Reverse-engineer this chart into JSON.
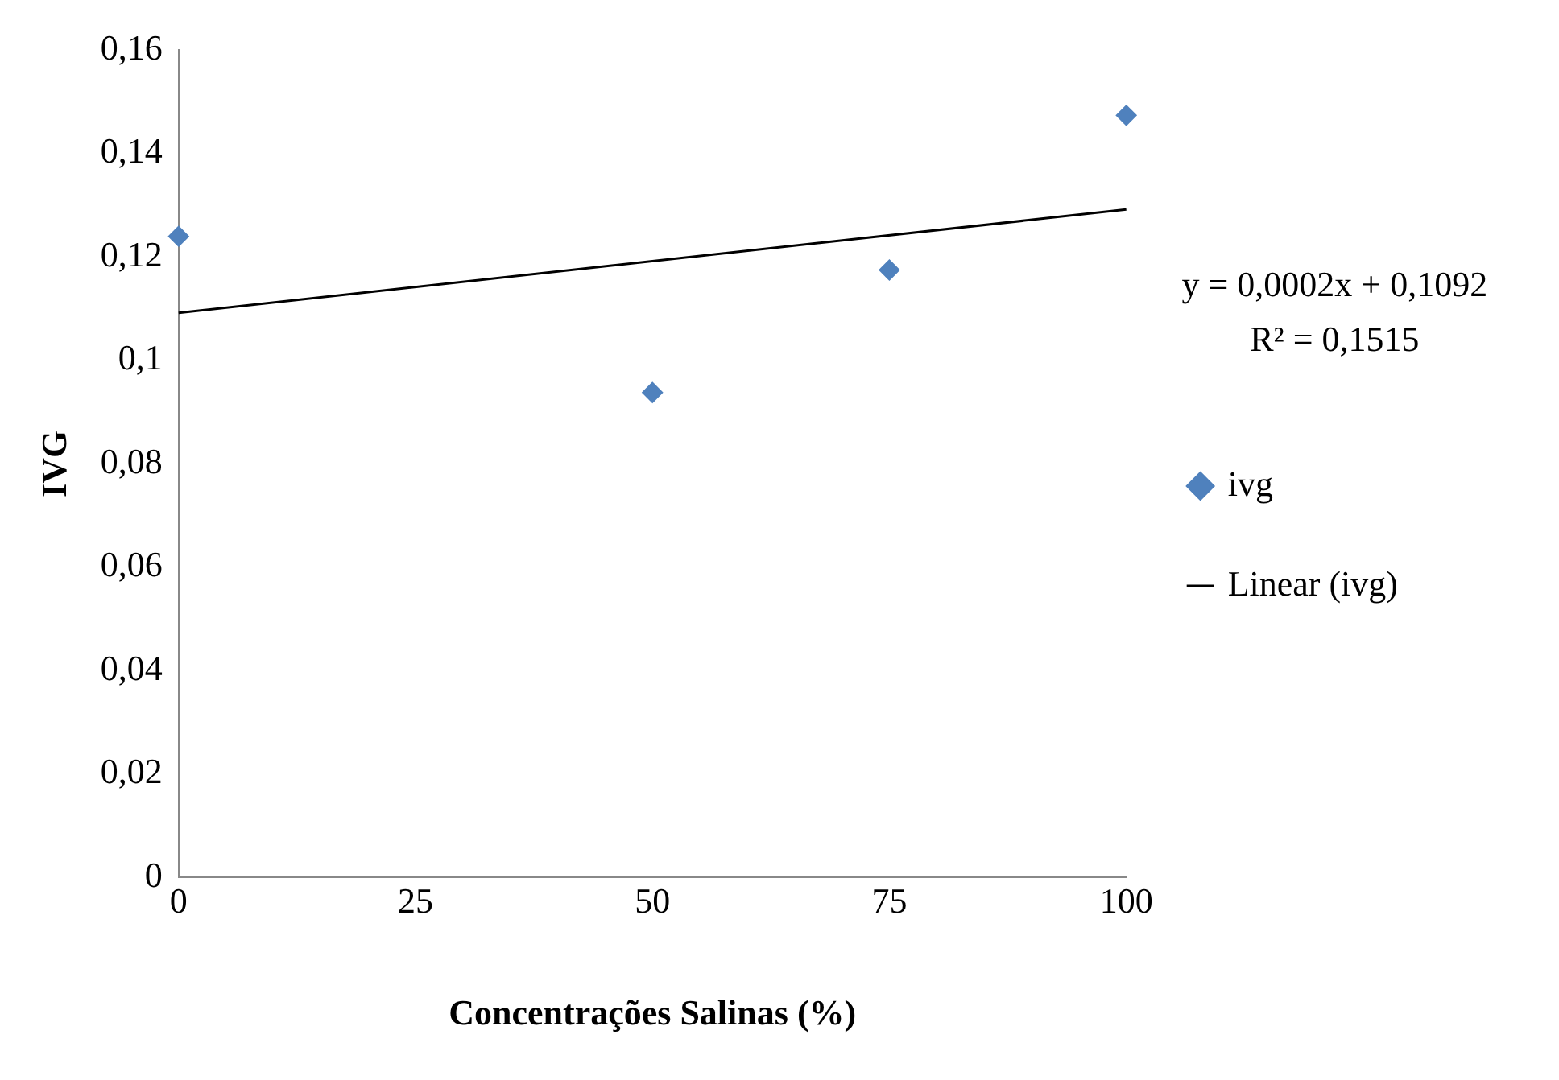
{
  "chart_data": {
    "type": "scatter",
    "xlabel": "Concentrações Salinas (%)",
    "ylabel": "IVG",
    "x": [
      0,
      50,
      75,
      100
    ],
    "series": [
      {
        "name": "ivg",
        "type": "scatter",
        "color": "#4f81bd",
        "marker": "diamond",
        "values": [
          0.124,
          0.0938,
          0.1175,
          0.1474
        ]
      },
      {
        "name": "Linear (ivg)",
        "type": "line",
        "color": "#000000",
        "marker": "none",
        "x": [
          0,
          100
        ],
        "values": [
          0.1092,
          0.1292
        ]
      }
    ],
    "xlim": [
      0,
      100
    ],
    "xticks": [
      0,
      25,
      50,
      75,
      100
    ],
    "ylim": [
      0,
      0.16
    ],
    "yticks": [
      {
        "value": 0,
        "label": "0"
      },
      {
        "value": 0.02,
        "label": "0,02"
      },
      {
        "value": 0.04,
        "label": "0,04"
      },
      {
        "value": 0.06,
        "label": "0,06"
      },
      {
        "value": 0.08,
        "label": "0,08"
      },
      {
        "value": 0.1,
        "label": "0,1"
      },
      {
        "value": 0.12,
        "label": "0,12"
      },
      {
        "value": 0.14,
        "label": "0,14"
      },
      {
        "value": 0.16,
        "label": "0,16"
      }
    ],
    "annotations": [
      "y = 0,0002x + 0,1092",
      "R² = 0,1515"
    ],
    "legend": "right",
    "grid": false
  }
}
